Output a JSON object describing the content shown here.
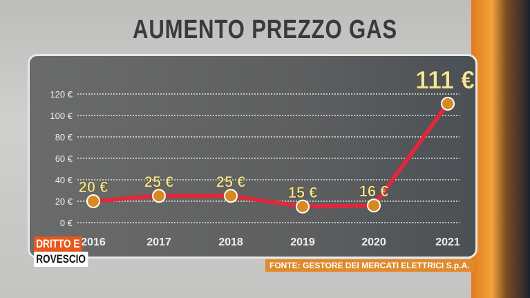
{
  "chart_data": {
    "type": "line",
    "title": "AUMENTO PREZZO GAS",
    "categories": [
      "2016",
      "2017",
      "2018",
      "2019",
      "2020",
      "2021"
    ],
    "values": [
      20,
      25,
      25,
      15,
      16,
      111
    ],
    "data_labels": [
      "20 €",
      "25 €",
      "25 €",
      "15 €",
      "16 €",
      "111 €"
    ],
    "y_ticks": [
      "0 €",
      "20 €",
      "40 €",
      "60 €",
      "80 €",
      "100 €",
      "120 €"
    ],
    "y_tick_values": [
      0,
      20,
      40,
      60,
      80,
      100,
      120
    ],
    "ylim": [
      0,
      120
    ],
    "grid": true,
    "colors": {
      "line": "#e0283c",
      "marker": "#d98a1e",
      "label": "#f2e6a0"
    }
  },
  "source": "FONTE: GESTORE DEI MERCATI ELETTRICI S.p.A.",
  "logo": {
    "line1": "DRITTO E",
    "line2": "ROVESCIO"
  }
}
